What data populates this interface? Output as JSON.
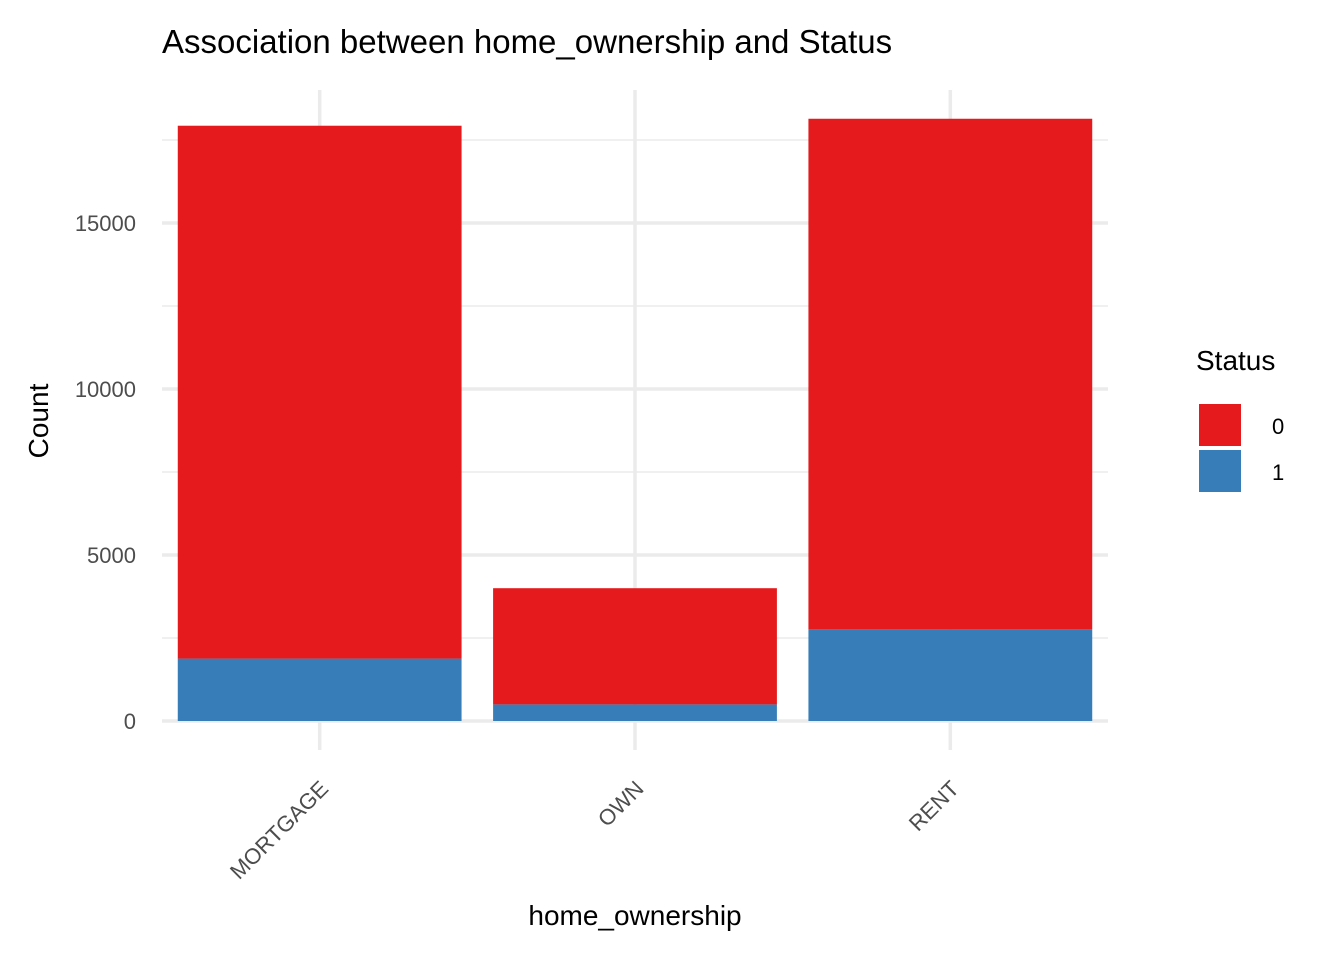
{
  "chart_data": {
    "type": "bar",
    "stacked": true,
    "title": "Association between home_ownership and Status",
    "xlabel": "home_ownership",
    "ylabel": "Count",
    "categories": [
      "MORTGAGE",
      "OWN",
      "RENT"
    ],
    "series": [
      {
        "name": "0",
        "color": "#E41A1C",
        "values": [
          16050,
          3500,
          15380
        ]
      },
      {
        "name": "1",
        "color": "#377EB8",
        "values": [
          1880,
          500,
          2760
        ]
      }
    ],
    "ylim": [
      0,
      18950
    ],
    "yticks": [
      0,
      5000,
      10000,
      15000
    ],
    "y_minor_ticks": [
      2500,
      7500,
      12500,
      17500
    ],
    "grid": true,
    "legend": {
      "title": "Status",
      "position": "right"
    }
  }
}
